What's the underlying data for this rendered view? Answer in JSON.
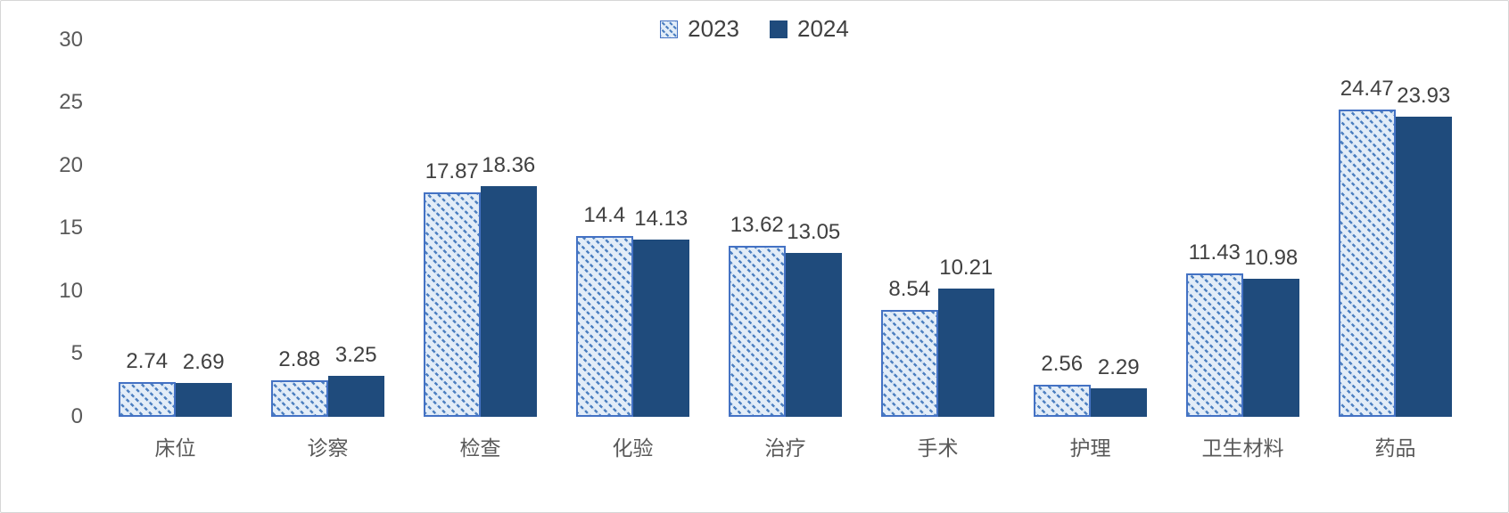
{
  "chart_data": {
    "type": "bar",
    "title": "",
    "xlabel": "",
    "ylabel": "",
    "categories": [
      "床位",
      "诊察",
      "检查",
      "化验",
      "治疗",
      "手术",
      "护理",
      "卫生材料",
      "药品"
    ],
    "series": [
      {
        "name": "2023",
        "style": "hatched",
        "values": [
          2.74,
          2.88,
          17.87,
          14.4,
          13.62,
          8.54,
          2.56,
          11.43,
          24.47
        ]
      },
      {
        "name": "2024",
        "style": "solid",
        "values": [
          2.69,
          3.25,
          18.36,
          14.13,
          13.05,
          10.21,
          2.29,
          10.98,
          23.93
        ]
      }
    ],
    "ylim": [
      0,
      30
    ],
    "yticks": [
      0,
      5,
      10,
      15,
      20,
      25,
      30
    ],
    "grid": false,
    "legend_position": "top-center"
  },
  "colors": {
    "series_2023_fill": "#E3EDF8",
    "series_2023_hatch": "#4C7FC0",
    "series_2023_border": "#4472C4",
    "series_2024_fill": "#1F4B7C",
    "label_text": "#404040",
    "axis_text": "#595959",
    "background": "#FFFFFF"
  }
}
